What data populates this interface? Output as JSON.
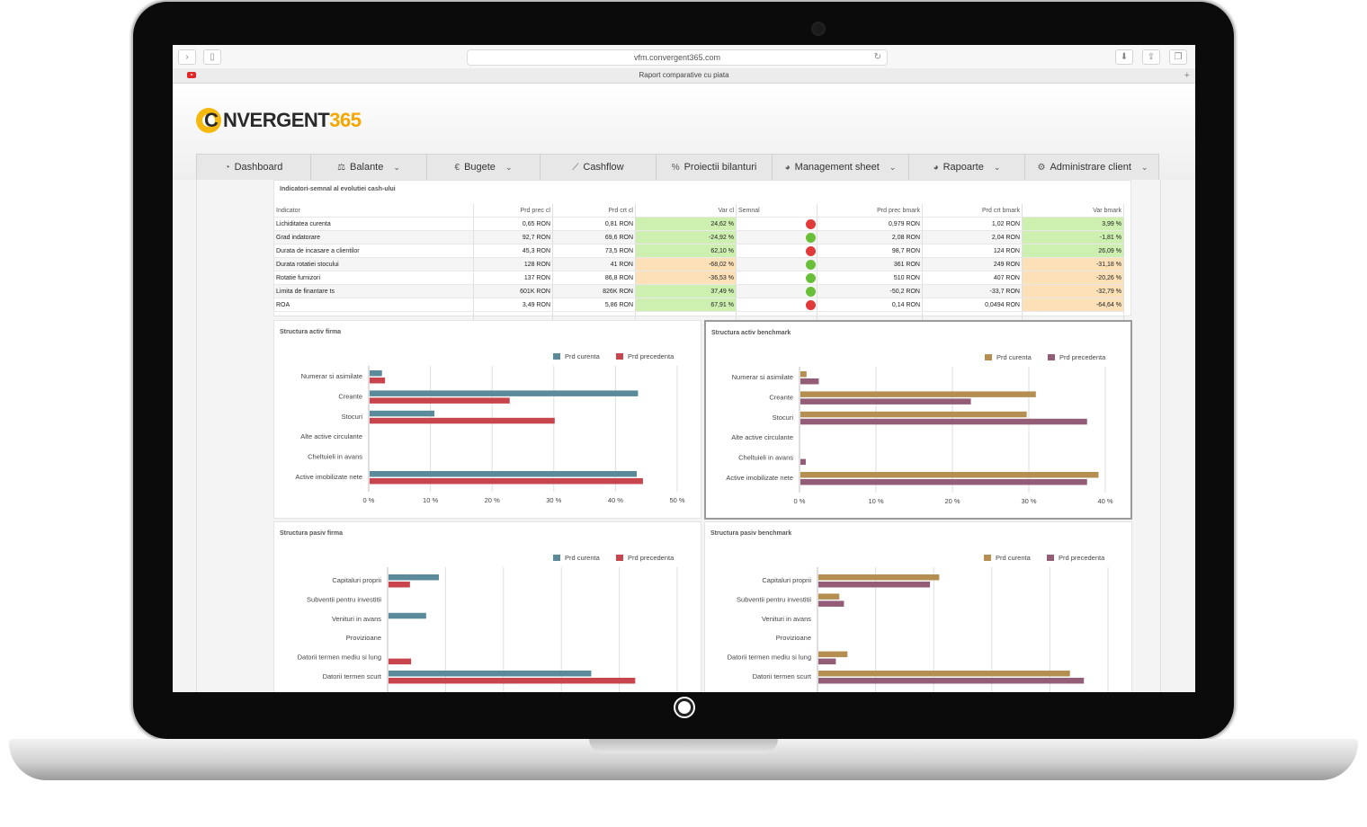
{
  "browser": {
    "url": "vfm.convergent365.com",
    "tab_title": "Raport comparative cu piata"
  },
  "logo": {
    "main": "C NVERGENT",
    "num": "365"
  },
  "menu": [
    {
      "label": "Dashboard",
      "icon": "dashboard-icon",
      "dropdown": false
    },
    {
      "label": "Balante",
      "icon": "balance-scale-icon",
      "dropdown": true
    },
    {
      "label": "Bugete",
      "icon": "euro-icon",
      "dropdown": true
    },
    {
      "label": "Cashflow",
      "icon": "line-chart-icon",
      "dropdown": false
    },
    {
      "label": "Proiectii bilanturi",
      "icon": "percent-icon",
      "dropdown": false
    },
    {
      "label": "Management sheet",
      "icon": "pie-chart-icon",
      "dropdown": true
    },
    {
      "label": "Rapoarte",
      "icon": "pie-chart-icon",
      "dropdown": true
    },
    {
      "label": "Administrare client",
      "icon": "gears-icon",
      "dropdown": true
    }
  ],
  "indicators": {
    "title": "Indicatori-semnal al evolutiei cash-ului",
    "headers": [
      "Indicator",
      "Prd prec cl",
      "Prd crt cl",
      "Var cl",
      "Semnal",
      "Prd prec bmark",
      "Prd crt bmark",
      "Var bmark"
    ],
    "rows": [
      {
        "name": "Lichiditatea curenta",
        "prec": "0,65 RON",
        "crt": "0,81 RON",
        "var": "24,62 %",
        "var_bg": "green",
        "signal": "red",
        "bprec": "0,979 RON",
        "bcrt": "1,02 RON",
        "bvar": "3,99 %",
        "bvar_bg": "green"
      },
      {
        "name": "Grad indatorare",
        "prec": "92,7 RON",
        "crt": "69,6 RON",
        "var": "-24,92 %",
        "var_bg": "green",
        "signal": "green",
        "bprec": "2,08 RON",
        "bcrt": "2,04 RON",
        "bvar": "-1,81 %",
        "bvar_bg": "green"
      },
      {
        "name": "Durata de incasare a clientilor",
        "prec": "45,3 RON",
        "crt": "73,5 RON",
        "var": "62,10 %",
        "var_bg": "green",
        "signal": "red",
        "bprec": "98,7 RON",
        "bcrt": "124 RON",
        "bvar": "26,09 %",
        "bvar_bg": "green"
      },
      {
        "name": "Durata rotatiei stocului",
        "prec": "128 RON",
        "crt": "41 RON",
        "var": "-68,02 %",
        "var_bg": "orange",
        "signal": "green",
        "bprec": "361 RON",
        "bcrt": "249 RON",
        "bvar": "-31,18 %",
        "bvar_bg": "orange"
      },
      {
        "name": "Rotatie furnizori",
        "prec": "137 RON",
        "crt": "86,8 RON",
        "var": "-36,53 %",
        "var_bg": "orange",
        "signal": "green",
        "bprec": "510 RON",
        "bcrt": "407 RON",
        "bvar": "-20,26 %",
        "bvar_bg": "orange"
      },
      {
        "name": "Limita de finantare ts",
        "prec": "601K RON",
        "crt": "826K RON",
        "var": "37,49 %",
        "var_bg": "green",
        "signal": "green",
        "bprec": "-50,2 RON",
        "bcrt": "-33,7 RON",
        "bvar": "-32,79 %",
        "bvar_bg": "orange"
      },
      {
        "name": "ROA",
        "prec": "3,49 RON",
        "crt": "5,86 RON",
        "var": "67,91 %",
        "var_bg": "green",
        "signal": "red",
        "bprec": "0,14 RON",
        "bcrt": "0,0494 RON",
        "bvar": "-64,64 %",
        "bvar_bg": "orange"
      }
    ]
  },
  "colors": {
    "teal": "#5b8a9b",
    "red": "#c8454e",
    "gold": "#b58e52",
    "plum": "#935d78",
    "green_cell": "#cdefb0",
    "orange_cell": "#fbe0b8",
    "dot_red": "#e03a3a",
    "dot_green": "#6abf3a"
  },
  "chart_data": [
    {
      "type": "bar",
      "orientation": "horizontal",
      "title": "Structura activ firma",
      "categories": [
        "Numerar si asimilate",
        "Creante",
        "Stocuri",
        "Alte active circulante",
        "Cheltuieli in avans",
        "Active imobilizate nete"
      ],
      "series": [
        {
          "name": "Prd curenta",
          "color": "#5b8a9b",
          "values": [
            2,
            43.5,
            10.5,
            0,
            0,
            43.3
          ]
        },
        {
          "name": "Prd precedenta",
          "color": "#c8454e",
          "values": [
            2.5,
            22.7,
            30,
            0,
            0,
            44.3
          ]
        }
      ],
      "xlim": [
        0,
        50
      ],
      "ticks": [
        "0 %",
        "10 %",
        "20 %",
        "30 %",
        "40 %",
        "50 %"
      ],
      "legend": "top-right",
      "grid": true
    },
    {
      "type": "bar",
      "orientation": "horizontal",
      "title": "Structura activ benchmark",
      "categories": [
        "Numerar si asimilate",
        "Creante",
        "Stocuri",
        "Alte active circulante",
        "Cheltuieli in avans",
        "Active imobilizate nete"
      ],
      "series": [
        {
          "name": "Prd curenta",
          "color": "#b58e52",
          "values": [
            0.8,
            30.8,
            29.6,
            0,
            0,
            39
          ]
        },
        {
          "name": "Prd precedenta",
          "color": "#935d78",
          "values": [
            2.4,
            22.3,
            37.5,
            0,
            0.7,
            37.5
          ]
        }
      ],
      "xlim": [
        0,
        40
      ],
      "ticks": [
        "0 %",
        "10 %",
        "20 %",
        "30 %",
        "40 %"
      ],
      "legend": "top-right",
      "grid": true
    },
    {
      "type": "bar",
      "orientation": "horizontal",
      "title": "Structura pasiv firma",
      "categories": [
        "Capitaluri proprii",
        "Subventii pentru investitii",
        "Venituri in avans",
        "Provizioane",
        "Datorii termen mediu si lung",
        "Datorii termen scurt"
      ],
      "series": [
        {
          "name": "Prd curenta",
          "color": "#5b8a9b",
          "values": [
            8.7,
            0,
            6.5,
            0,
            0,
            35
          ]
        },
        {
          "name": "Prd precedenta",
          "color": "#c8454e",
          "values": [
            3.7,
            0,
            0,
            0,
            3.9,
            42.6
          ]
        }
      ],
      "legend": "top-right",
      "grid": true
    },
    {
      "type": "bar",
      "orientation": "horizontal",
      "title": "Structura pasiv benchmark",
      "categories": [
        "Capitaluri proprii",
        "Subventii pentru investitii",
        "Venituri in avans",
        "Provizioane",
        "Datorii termen mediu si lung",
        "Datorii termen scurt"
      ],
      "series": [
        {
          "name": "Prd curenta",
          "color": "#b58e52",
          "values": [
            20.8,
            3.6,
            0,
            0,
            5,
            43.3
          ]
        },
        {
          "name": "Prd precedenta",
          "color": "#935d78",
          "values": [
            19.2,
            4.4,
            0,
            0,
            3,
            45.7
          ]
        }
      ],
      "legend": "top-right",
      "grid": true
    }
  ]
}
